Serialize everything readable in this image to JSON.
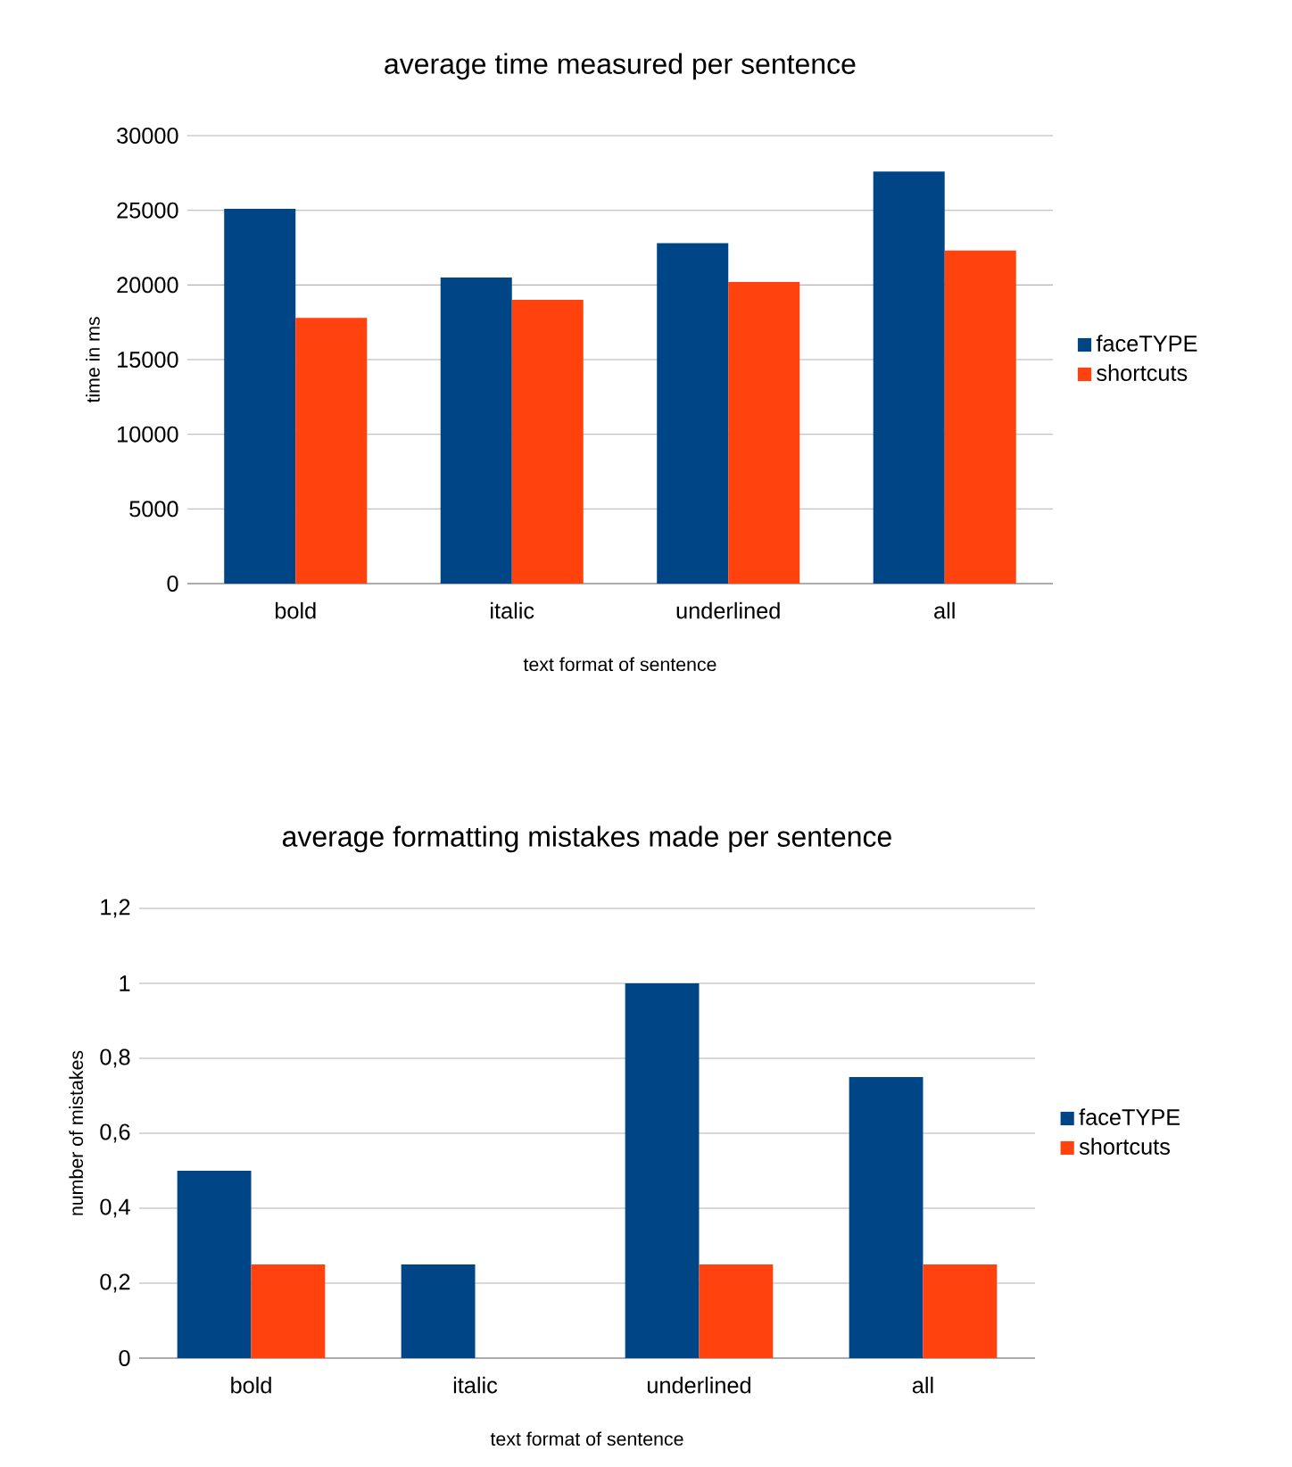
{
  "chart_data": [
    {
      "type": "bar",
      "title": "average time measured per sentence",
      "xlabel": "text format of sentence",
      "ylabel": "time in ms",
      "categories": [
        "bold",
        "italic",
        "underlined",
        "all"
      ],
      "series": [
        {
          "name": "faceTYPE",
          "color": "#004586",
          "values": [
            25100,
            20500,
            22800,
            27600
          ]
        },
        {
          "name": "shortcuts",
          "color": "#ff420e",
          "values": [
            17800,
            19000,
            20200,
            22300
          ]
        }
      ],
      "ylim": [
        0,
        30000
      ],
      "yticks": [
        0,
        5000,
        10000,
        15000,
        20000,
        25000,
        30000
      ],
      "grid": "y",
      "legend": "right"
    },
    {
      "type": "bar",
      "title": "average formatting mistakes made per sentence",
      "xlabel": "text format of sentence",
      "ylabel": "number of mistakes",
      "categories": [
        "bold",
        "italic",
        "underlined",
        "all"
      ],
      "series": [
        {
          "name": "faceTYPE",
          "color": "#004586",
          "values": [
            0.5,
            0.25,
            1,
            0.75
          ]
        },
        {
          "name": "shortcuts",
          "color": "#ff420e",
          "values": [
            0.25,
            0,
            0.25,
            0.25
          ]
        }
      ],
      "ylim": [
        0,
        1.2
      ],
      "yticks": [
        0,
        {
          "value": 0.2,
          "label": "0,2"
        },
        {
          "value": 0.4,
          "label": "0,4"
        },
        {
          "value": 0.6,
          "label": "0,6"
        },
        {
          "value": 0.8,
          "label": "0,8"
        },
        1,
        {
          "value": 1.2,
          "label": "1,2"
        }
      ],
      "grid": "y",
      "legend": "right"
    }
  ]
}
